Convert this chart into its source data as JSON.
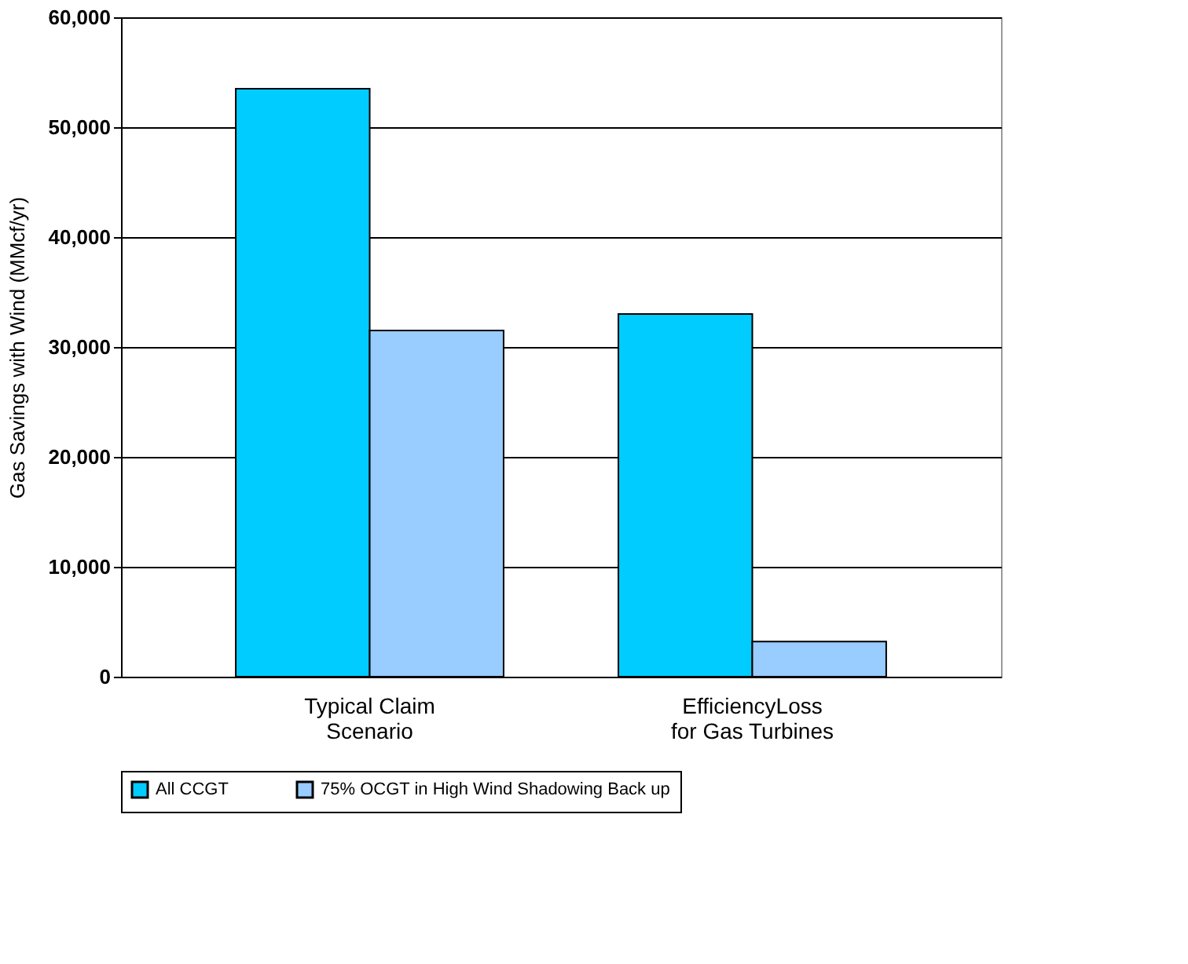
{
  "chart_data": {
    "type": "bar",
    "ylabel": "Gas Savings with Wind (MMcf/yr)",
    "categories": [
      "Typical Claim\nScenario",
      "EfficiencyLoss\nfor Gas Turbines"
    ],
    "series": [
      {
        "name": "All CCGT",
        "color": "#00ccff",
        "values": [
          53500,
          33000
        ]
      },
      {
        "name": "75% OCGT in High Wind Shadowing Back up",
        "color": "#99ccff",
        "values": [
          31500,
          3200
        ]
      }
    ],
    "ylim": [
      0,
      60000
    ],
    "yticks": [
      0,
      {
        "value": 10000,
        "label": "10,000"
      },
      {
        "value": 20000,
        "label": "20,000"
      },
      {
        "value": 30000,
        "label": "30,000"
      },
      {
        "value": 40000,
        "label": "40,000"
      },
      {
        "value": 50000,
        "label": "50,000"
      },
      {
        "value": 60000,
        "label": "60,000"
      }
    ],
    "grid": "y",
    "legend": "bottom"
  }
}
